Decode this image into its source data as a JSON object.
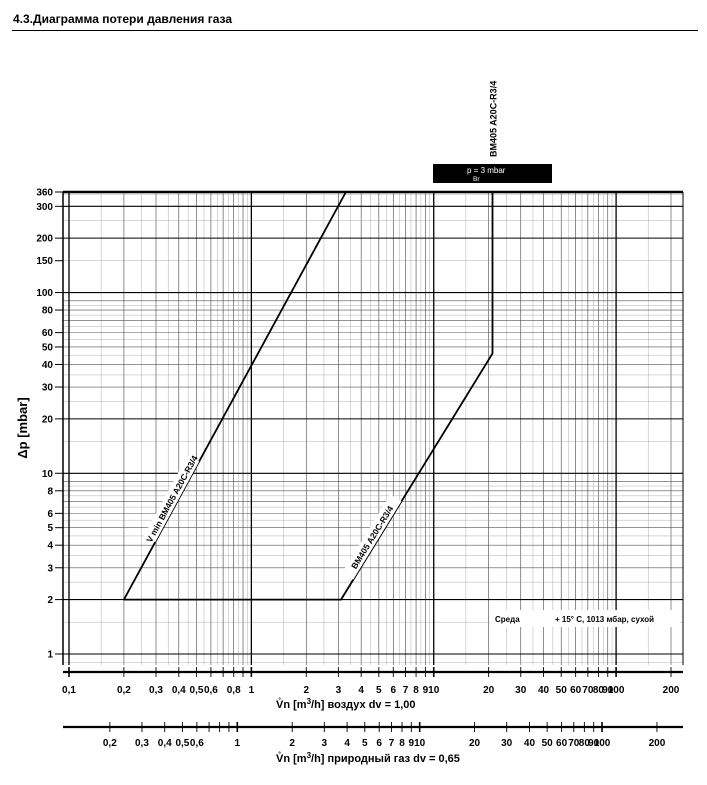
{
  "header": {
    "title": "4.3.Диаграмма потери давления газа"
  },
  "chart_data": {
    "type": "line",
    "scale": {
      "x": "log",
      "y": "log"
    },
    "grid": true,
    "ylabel": "Δp [mbar]",
    "ylim": [
      0.8,
      390
    ],
    "y_ticks": [
      1,
      2,
      3,
      4,
      5,
      6,
      8,
      10,
      20,
      30,
      40,
      50,
      60,
      80,
      100,
      150,
      200,
      300,
      360
    ],
    "axes": [
      {
        "name": "air",
        "xlabel_prefix": "V̊n [m",
        "xlabel_sup": "3",
        "xlabel_suffix": "/h]  воздух dv = 1,00",
        "xlim": [
          0.085,
          260
        ],
        "ticks": [
          {
            "v": 0.1,
            "label": "0,1"
          },
          {
            "v": 0.2,
            "label": "0,2"
          },
          {
            "v": 0.3,
            "label": "0,3"
          },
          {
            "v": 0.4,
            "label": "0,4"
          },
          {
            "v": 0.5,
            "label": "0,5"
          },
          {
            "v": 0.6,
            "label": "0,6"
          },
          {
            "v": 0.8,
            "label": "0,8"
          },
          {
            "v": 1,
            "label": "1"
          },
          {
            "v": 2,
            "label": "2"
          },
          {
            "v": 3,
            "label": "3"
          },
          {
            "v": 4,
            "label": "4"
          },
          {
            "v": 5,
            "label": "5"
          },
          {
            "v": 6,
            "label": "6"
          },
          {
            "v": 7,
            "label": "7"
          },
          {
            "v": 8,
            "label": "8"
          },
          {
            "v": 9,
            "label": "9"
          },
          {
            "v": 10,
            "label": "10"
          },
          {
            "v": 20,
            "label": "20"
          },
          {
            "v": 30,
            "label": "30"
          },
          {
            "v": 40,
            "label": "40"
          },
          {
            "v": 50,
            "label": "50"
          },
          {
            "v": 60,
            "label": "60"
          },
          {
            "v": 70,
            "label": "70"
          },
          {
            "v": 80,
            "label": "80"
          },
          {
            "v": 90,
            "label": "90"
          },
          {
            "v": 100,
            "label": "100"
          },
          {
            "v": 200,
            "label": "200"
          }
        ]
      },
      {
        "name": "natural-gas",
        "xlabel_prefix": "V̊n [m",
        "xlabel_sup": "3",
        "xlabel_suffix": "/h] природный газ dv = 0,65",
        "ticks": [
          {
            "v": 0.2,
            "label": "0,2"
          },
          {
            "v": 0.3,
            "label": "0,3"
          },
          {
            "v": 0.4,
            "label": "0,4"
          },
          {
            "v": 0.5,
            "label": "0,5"
          },
          {
            "v": 0.6,
            "label": "0,6"
          },
          {
            "v": 1,
            "label": "1"
          },
          {
            "v": 2,
            "label": "2"
          },
          {
            "v": 3,
            "label": "3"
          },
          {
            "v": 4,
            "label": "4"
          },
          {
            "v": 5,
            "label": "5"
          },
          {
            "v": 6,
            "label": "6"
          },
          {
            "v": 7,
            "label": "7"
          },
          {
            "v": 8,
            "label": "8"
          },
          {
            "v": 9,
            "label": "9"
          },
          {
            "v": 10,
            "label": "10"
          },
          {
            "v": 20,
            "label": "20"
          },
          {
            "v": 30,
            "label": "30"
          },
          {
            "v": 40,
            "label": "40"
          },
          {
            "v": 50,
            "label": "50"
          },
          {
            "v": 60,
            "label": "60"
          },
          {
            "v": 70,
            "label": "70"
          },
          {
            "v": 80,
            "label": "80"
          },
          {
            "v": 90,
            "label": "90"
          },
          {
            "v": 100,
            "label": "100"
          },
          {
            "v": 200,
            "label": "200"
          }
        ]
      }
    ],
    "series": [
      {
        "name": "V min BM405 A20C-R3/4",
        "points": [
          [
            0.2,
            2
          ],
          [
            0.2,
            2
          ],
          [
            3.3,
            360
          ]
        ]
      },
      {
        "name": "BM405 A20C-R3/4",
        "points": [
          [
            0.2,
            2
          ],
          [
            3.1,
            2
          ],
          [
            21,
            46
          ],
          [
            21,
            360
          ]
        ]
      }
    ],
    "annotations": {
      "top_label": "BM405 A20C-R3/4",
      "pbr": {
        "p": "p",
        "eq": " = 3 mbar",
        "sub": "Br"
      },
      "conditions": {
        "medium": "Среда",
        "conditions": "+ 15° C, 1013 мбар, сухой"
      }
    }
  }
}
